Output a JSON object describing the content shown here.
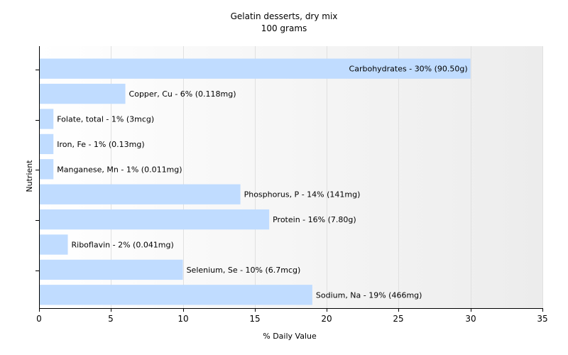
{
  "chart_data": {
    "type": "bar",
    "orientation": "horizontal",
    "title": "Gelatin desserts, dry mix",
    "subtitle": "100 grams",
    "xlabel": "% Daily Value",
    "ylabel": "Nutrient",
    "xlim": [
      0,
      35
    ],
    "xticks": [
      0,
      5,
      10,
      15,
      20,
      25,
      30,
      35
    ],
    "grid": true,
    "legend": "none",
    "bar_color": "#c0dcff",
    "categories": [
      "Carbohydrates",
      "Copper, Cu",
      "Folate, total",
      "Iron, Fe",
      "Manganese, Mn",
      "Phosphorus, P",
      "Protein",
      "Riboflavin",
      "Selenium, Se",
      "Sodium, Na"
    ],
    "values": [
      30,
      6,
      1,
      1,
      1,
      14,
      16,
      2,
      10,
      19
    ],
    "bar_labels": [
      "Carbohydrates - 30% (90.50g)",
      "Copper, Cu - 6% (0.118mg)",
      "Folate, total - 1% (3mcg)",
      "Iron, Fe - 1% (0.13mg)",
      "Manganese, Mn - 1% (0.011mg)",
      "Phosphorus, P - 14% (141mg)",
      "Protein - 16% (7.80g)",
      "Riboflavin - 2% (0.041mg)",
      "Selenium, Se - 10% (6.7mcg)",
      "Sodium, Na - 19% (466mg)"
    ],
    "label_inside_bar": [
      true,
      false,
      false,
      false,
      false,
      false,
      false,
      false,
      false,
      false
    ]
  }
}
